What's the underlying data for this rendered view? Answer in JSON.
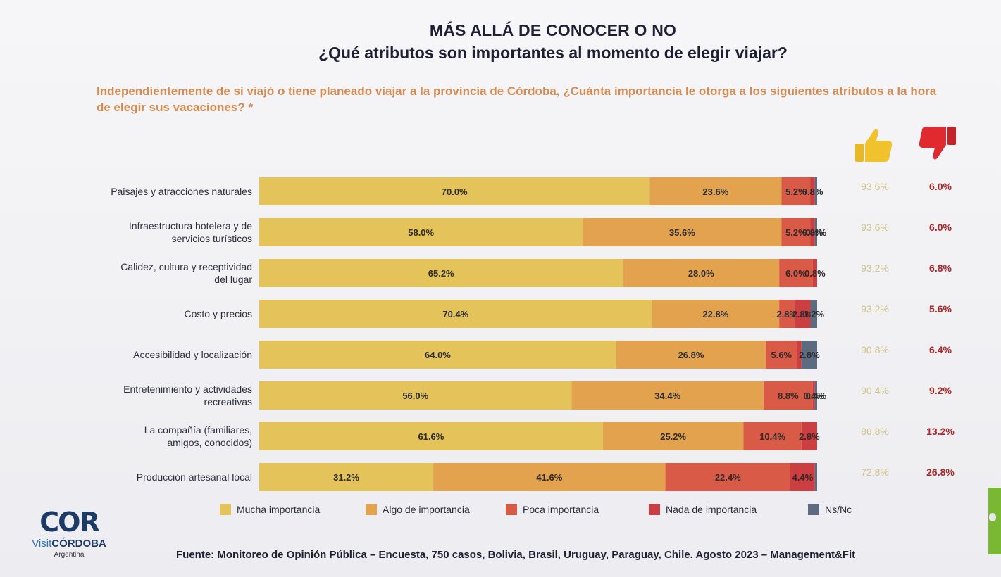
{
  "header": {
    "title": "MÁS ALLÁ DE CONOCER O NO",
    "subtitle": "¿Qué atributos son importantes al momento de elegir viajar?",
    "question": "Independientemente de si viajó o tiene planeado viajar a la provincia de Córdoba, ¿Cuánta importancia le otorga a los siguientes atributos a la hora de elegir sus vacaciones? *"
  },
  "icons": {
    "positive": "thumbs-up-icon",
    "negative": "thumbs-down-icon"
  },
  "colors": {
    "mucha": "#e3c35a",
    "algo": "#e3a24e",
    "poca": "#d95a46",
    "nada": "#cb3e42",
    "nsnc": "#5c6b80",
    "positive_text": "#cfc28a",
    "negative_text": "#a8282a"
  },
  "chart_data": {
    "type": "bar",
    "orientation": "horizontal",
    "stacked": true,
    "categories": [
      "Paisajes y atracciones naturales",
      "Infraestructura hotelera y de servicios turísticos",
      "Calidez, cultura y receptividad del lugar",
      "Costo y precios",
      "Accesibilidad y localización",
      "Entretenimiento y actividades recreativas",
      "La compañía (familiares, amigos, conocidos)",
      "Producción artesanal local"
    ],
    "category_lines": [
      [
        "Paisajes y atracciones naturales"
      ],
      [
        "Infraestructura hotelera y de",
        "servicios turísticos"
      ],
      [
        "Calidez, cultura y receptividad",
        "del lugar"
      ],
      [
        "Costo y precios"
      ],
      [
        "Accesibilidad y localización"
      ],
      [
        "Entretenimiento y actividades",
        "recreativas"
      ],
      [
        "La compañía (familiares,",
        "amigos, conocidos)"
      ],
      [
        "Producción artesanal local"
      ]
    ],
    "series": [
      {
        "name": "Mucha importancia",
        "values": [
          70.0,
          58.0,
          65.2,
          70.4,
          64.0,
          56.0,
          61.6,
          31.2
        ]
      },
      {
        "name": "Algo de importancia",
        "values": [
          23.6,
          35.6,
          28.0,
          22.8,
          26.8,
          34.4,
          25.2,
          41.6
        ]
      },
      {
        "name": "Poca importancia",
        "values": [
          5.2,
          5.2,
          6.0,
          2.8,
          5.6,
          8.8,
          10.4,
          22.4
        ]
      },
      {
        "name": "Nada de importancia",
        "values": [
          0.8,
          0.8,
          0.8,
          2.8,
          0.8,
          0.4,
          2.8,
          4.4
        ]
      },
      {
        "name": "Ns/Nc",
        "values": [
          0.4,
          0.4,
          0.0,
          1.2,
          2.8,
          0.4,
          0.0,
          0.4
        ]
      }
    ],
    "labels": [
      [
        "70.0%",
        "23.6%",
        "5.2%",
        "0.8%",
        ""
      ],
      [
        "58.0%",
        "35.6%",
        "5.2%",
        "0.8%",
        "0.4%"
      ],
      [
        "65.2%",
        "28.0%",
        "6.0%",
        "0.8%",
        ""
      ],
      [
        "70.4%",
        "22.8%",
        "2.8%",
        "2.8%",
        "1.2%"
      ],
      [
        "64.0%",
        "26.8%",
        "5.6%",
        "",
        "2.8%"
      ],
      [
        "56.0%",
        "34.4%",
        "8.8%",
        "0.4%",
        "0.4%"
      ],
      [
        "61.6%",
        "25.2%",
        "10.4%",
        "2.8%",
        ""
      ],
      [
        "31.2%",
        "41.6%",
        "22.4%",
        "4.4%",
        ""
      ]
    ],
    "positive_totals": [
      "93.6%",
      "93.6%",
      "93.2%",
      "93.2%",
      "90.8%",
      "90.4%",
      "86.8%",
      "72.8%"
    ],
    "negative_totals": [
      "6.0%",
      "6.0%",
      "6.8%",
      "5.6%",
      "6.4%",
      "9.2%",
      "13.2%",
      "26.8%"
    ],
    "xlim": [
      0,
      100
    ],
    "legend_position": "bottom"
  },
  "legend": [
    {
      "label": "Mucha importancia",
      "color": "#e3c35a"
    },
    {
      "label": "Algo de importancia",
      "color": "#e3a24e"
    },
    {
      "label": "Poca importancia",
      "color": "#d95a46"
    },
    {
      "label": "Nada de importancia",
      "color": "#cb3e42"
    },
    {
      "label": "Ns/Nc",
      "color": "#5c6b80"
    }
  ],
  "logo": {
    "mark": "COR",
    "brand_prefix": "Visit",
    "brand_main": "CÓRDOBA",
    "country": "Argentina"
  },
  "footer": {
    "source": "Fuente: Monitoreo de Opinión Pública – Encuesta, 750 casos, Bolivia, Brasil, Uruguay, Paraguay, Chile. Agosto 2023 – Management&Fit"
  }
}
